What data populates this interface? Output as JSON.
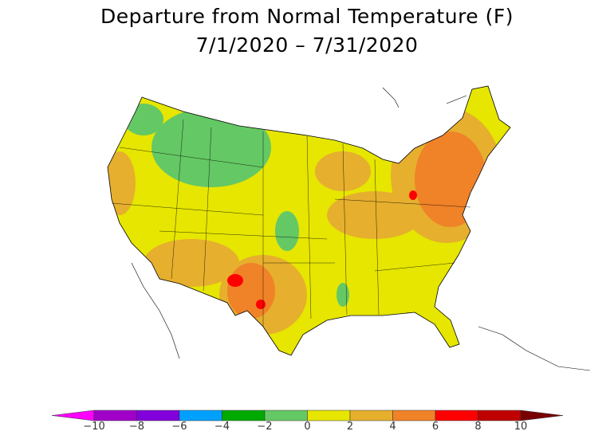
{
  "title": "Departure from Normal Temperature (F)",
  "date_range": "7/1/2020 – 7/31/2020",
  "legend": {
    "ticks": [
      "−10",
      "−8",
      "−6",
      "−4",
      "−2",
      "0",
      "2",
      "4",
      "6",
      "8",
      "10"
    ],
    "colors": [
      "#ff00ff",
      "#a000c8",
      "#8200dc",
      "#00a0ff",
      "#00aa00",
      "#64c864",
      "#e6e600",
      "#e6af2d",
      "#f08228",
      "#ff0000",
      "#be0000",
      "#780000"
    ]
  }
}
